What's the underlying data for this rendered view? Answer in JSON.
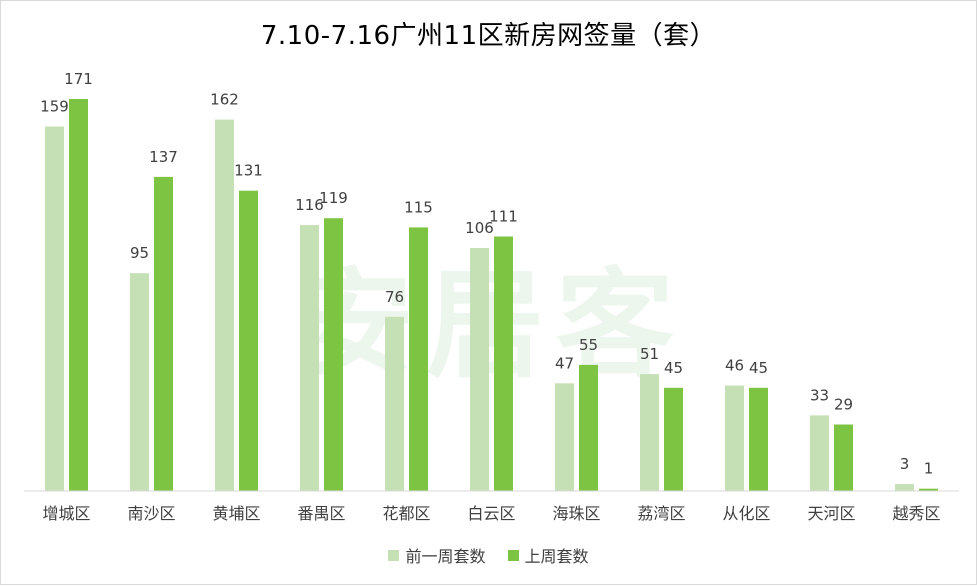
{
  "chart_data": {
    "type": "bar",
    "title": "7.10-7.16广州11区新房网签量（套）",
    "xlabel": "",
    "ylabel": "",
    "categories": [
      "增城区",
      "南沙区",
      "黄埔区",
      "番禺区",
      "花都区",
      "白云区",
      "海珠区",
      "荔湾区",
      "从化区",
      "天河区",
      "越秀区"
    ],
    "series": [
      {
        "name": "前一周套数",
        "color": "#c5e0b4",
        "values": [
          159,
          95,
          162,
          116,
          76,
          106,
          47,
          51,
          46,
          33,
          3
        ]
      },
      {
        "name": "上周套数",
        "color": "#7dc443",
        "values": [
          171,
          137,
          131,
          119,
          115,
          111,
          55,
          45,
          45,
          29,
          1
        ]
      }
    ],
    "ylim": [
      0,
      171
    ],
    "grid": false,
    "legend_position": "bottom",
    "data_labels": true
  },
  "watermark": "安居客"
}
